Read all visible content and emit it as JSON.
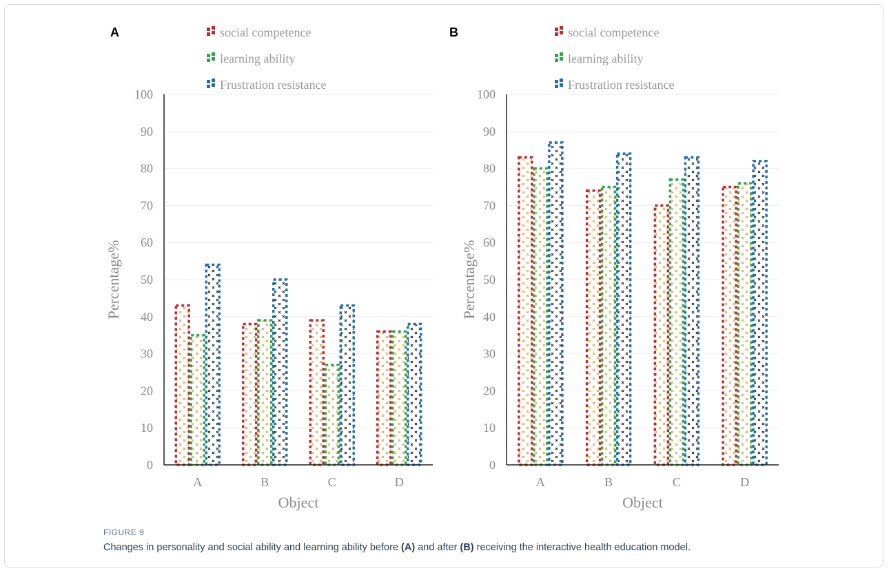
{
  "figure": {
    "label": "FIGURE 9",
    "caption_pre": "Changes in personality and social ability and learning ability before ",
    "caption_a": "(A)",
    "caption_mid": " and after ",
    "caption_b": "(B)",
    "caption_post": " receiving the interactive health education model."
  },
  "chart_data": [
    {
      "type": "bar",
      "panel_label": "A",
      "categories": [
        "A",
        "B",
        "C",
        "D"
      ],
      "series": [
        {
          "name": "social competence",
          "color": "#c0282d",
          "values": [
            43,
            38,
            39,
            36
          ]
        },
        {
          "name": "learning ability",
          "color": "#2aa84a",
          "values": [
            35,
            39,
            27,
            36
          ]
        },
        {
          "name": "Frustration resistance",
          "color": "#1f6fb5",
          "values": [
            54,
            50,
            43,
            38
          ]
        }
      ],
      "xlabel": "Object",
      "ylabel": "Percentage%",
      "ylim": [
        0,
        100
      ],
      "yticks": [
        0,
        10,
        20,
        30,
        40,
        50,
        60,
        70,
        80,
        90,
        100
      ],
      "grid": true,
      "legend": "top"
    },
    {
      "type": "bar",
      "panel_label": "B",
      "categories": [
        "A",
        "B",
        "C",
        "D"
      ],
      "series": [
        {
          "name": "social competence",
          "color": "#c0282d",
          "values": [
            83,
            74,
            70,
            75
          ]
        },
        {
          "name": "learning ability",
          "color": "#2aa84a",
          "values": [
            80,
            75,
            77,
            76
          ]
        },
        {
          "name": "Frustration resistance",
          "color": "#1f6fb5",
          "values": [
            87,
            84,
            83,
            82
          ]
        }
      ],
      "xlabel": "Object",
      "ylabel": "Percentage%",
      "ylim": [
        0,
        100
      ],
      "yticks": [
        0,
        10,
        20,
        30,
        40,
        50,
        60,
        70,
        80,
        90,
        100
      ],
      "grid": true,
      "legend": "top"
    }
  ]
}
